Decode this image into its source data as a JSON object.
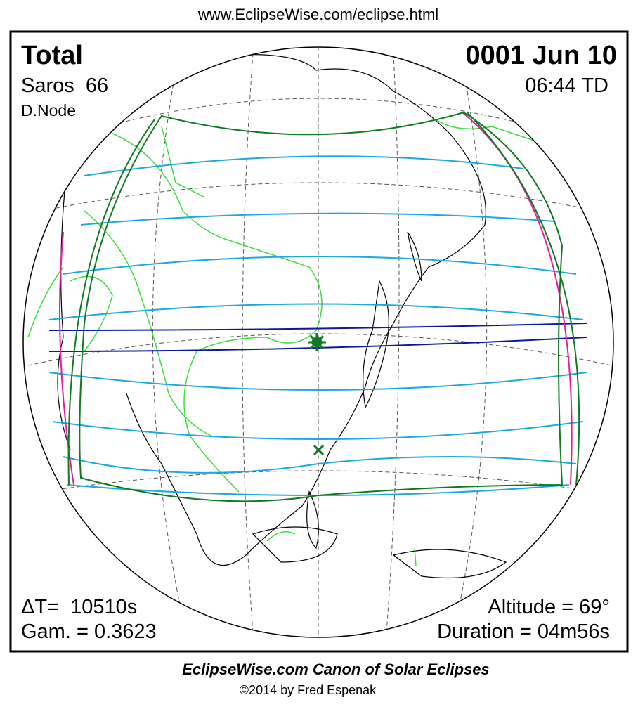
{
  "header": {
    "url": "www.EclipseWise.com/eclipse.html"
  },
  "eclipse": {
    "type": "Total",
    "saros": "Saros  66",
    "node": "D.Node",
    "date": "0001 Jun 10",
    "time": "06:44 TD",
    "delta_t": "ΔT=  10510s",
    "gamma": "Gam. = 0.3623",
    "altitude": "Altitude = 69°",
    "duration": "Duration = 04m56s"
  },
  "footer": {
    "title": "EclipseWise.com Canon of Solar Eclipses",
    "copyright": "©2014 by Fred Espenak"
  }
}
